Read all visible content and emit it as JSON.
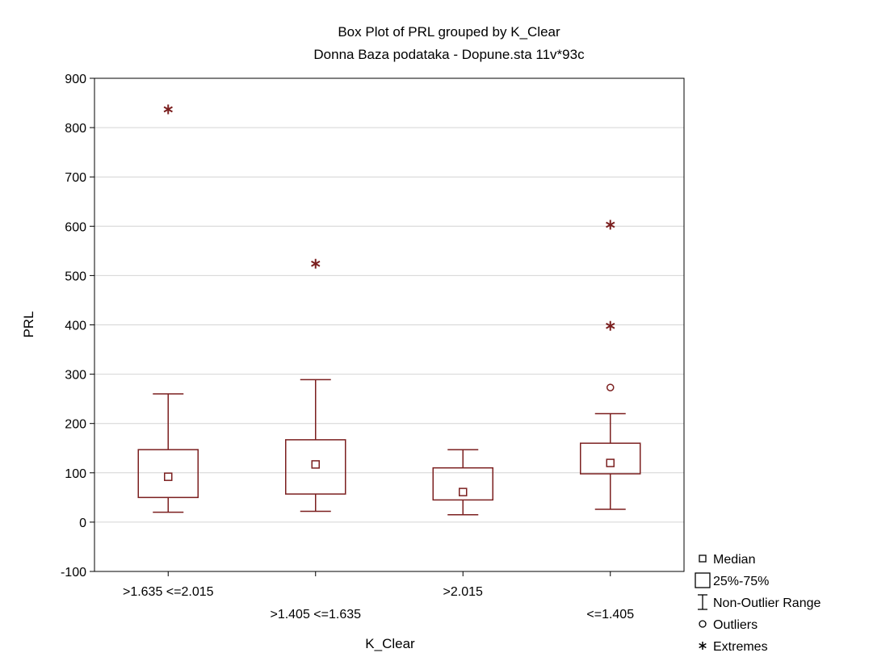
{
  "chart_data": {
    "type": "box",
    "title": "Box Plot of PRL grouped by  K_Clear",
    "subtitle": "Donna Baza podataka - Dopune.sta 11v*93c",
    "xlabel": "K_Clear",
    "ylabel": "PRL",
    "ylim": [
      -100,
      900
    ],
    "yticks": [
      -100,
      0,
      100,
      200,
      300,
      400,
      500,
      600,
      700,
      800,
      900
    ],
    "grid": true,
    "legend_position": "bottom-right",
    "colors": {
      "box": "#7b1f1f",
      "grid": "#d4d4d4",
      "frame": "#000000"
    },
    "categories": [
      ">1.635 <=2.015",
      ">1.405 <=1.635",
      ">2.015",
      "<=1.405"
    ],
    "boxes": [
      {
        "category": ">1.635 <=2.015",
        "median": 92,
        "q1": 50,
        "q3": 147,
        "whisker_low": 20,
        "whisker_high": 260,
        "outliers": [],
        "extremes": [
          837
        ]
      },
      {
        "category": ">1.405 <=1.635",
        "median": 117,
        "q1": 57,
        "q3": 167,
        "whisker_low": 22,
        "whisker_high": 289,
        "outliers": [],
        "extremes": [
          524
        ]
      },
      {
        "category": ">2.015",
        "median": 61,
        "q1": 45,
        "q3": 110,
        "whisker_low": 15,
        "whisker_high": 147,
        "outliers": [],
        "extremes": []
      },
      {
        "category": "<=1.405",
        "median": 120,
        "q1": 98,
        "q3": 160,
        "whisker_low": 26,
        "whisker_high": 220,
        "outliers": [
          273
        ],
        "extremes": [
          603,
          398
        ]
      }
    ],
    "legend": [
      {
        "key": "median",
        "label": "Median"
      },
      {
        "key": "box",
        "label": "25%-75%"
      },
      {
        "key": "range",
        "label": "Non-Outlier Range"
      },
      {
        "key": "outlier",
        "label": "Outliers"
      },
      {
        "key": "extreme",
        "label": "Extremes"
      }
    ]
  }
}
